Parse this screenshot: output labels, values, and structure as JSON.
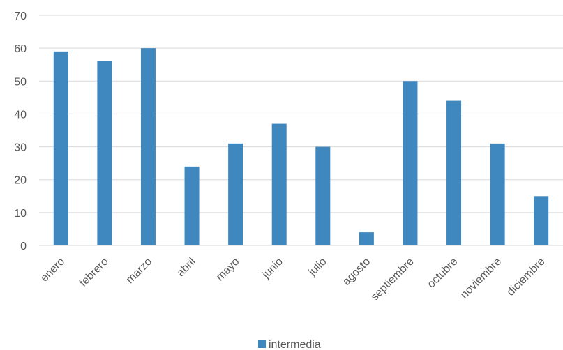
{
  "chart_data": {
    "type": "bar",
    "categories": [
      "enero",
      "febrero",
      "marzo",
      "abril",
      "mayo",
      "junio",
      "julio",
      "agosto",
      "septiembre",
      "octubre",
      "noviembre",
      "diciembre"
    ],
    "series": [
      {
        "name": "intermedia",
        "values": [
          59,
          56,
          60,
          24,
          31,
          37,
          30,
          4,
          50,
          44,
          31,
          15
        ]
      }
    ],
    "ylim": [
      0,
      70
    ],
    "yticks": [
      0,
      10,
      20,
      30,
      40,
      50,
      60,
      70
    ],
    "grid": true,
    "legend_position": "bottom",
    "colors": {
      "bar": "#3F88BF",
      "grid": "#D9D9D9",
      "text": "#595959"
    }
  }
}
